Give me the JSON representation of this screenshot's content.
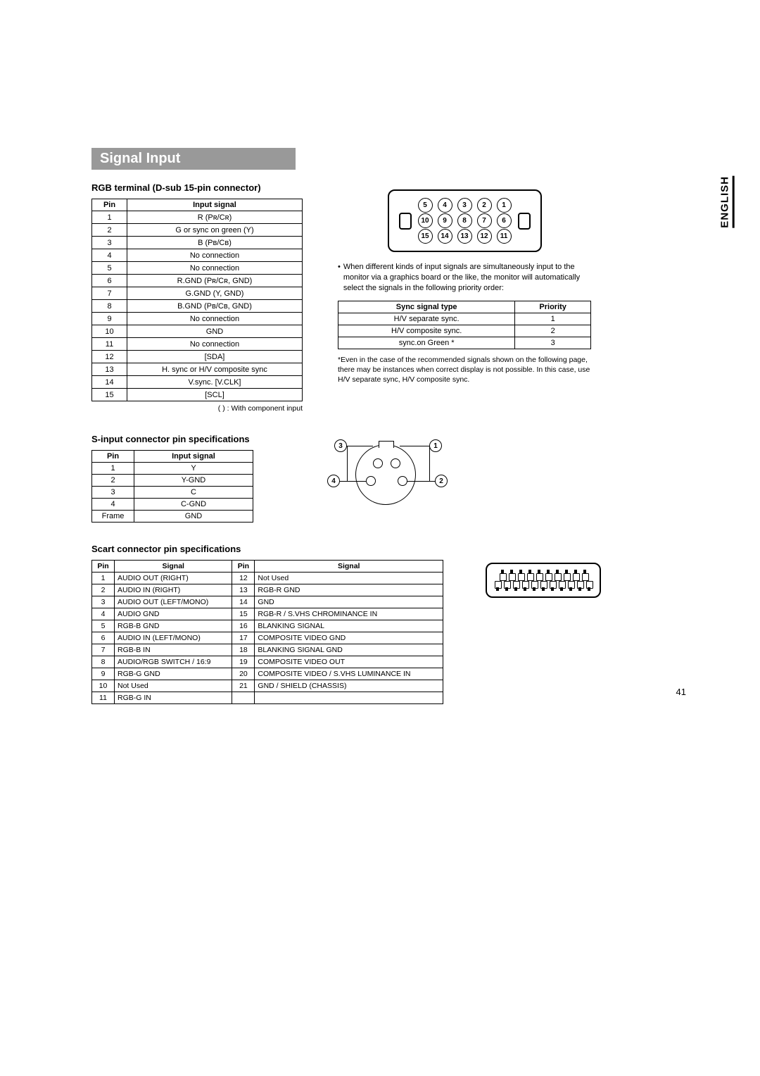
{
  "section_title": "Signal Input",
  "lang_label": "ENGLISH",
  "page_number": "41",
  "rgb": {
    "title": "RGB terminal (D-sub 15-pin connector)",
    "headers": [
      "Pin",
      "Input signal"
    ],
    "rows": [
      [
        "1",
        "R (Pʀ/Cʀ)"
      ],
      [
        "2",
        "G or sync on green (Y)"
      ],
      [
        "3",
        "B (Pв/Cв)"
      ],
      [
        "4",
        "No connection"
      ],
      [
        "5",
        "No connection"
      ],
      [
        "6",
        "R.GND (Pʀ/Cʀ, GND)"
      ],
      [
        "7",
        "G.GND (Y, GND)"
      ],
      [
        "8",
        "B.GND (Pв/Cв, GND)"
      ],
      [
        "9",
        "No connection"
      ],
      [
        "10",
        "GND"
      ],
      [
        "11",
        "No connection"
      ],
      [
        "12",
        "[SDA]"
      ],
      [
        "13",
        "H. sync or H/V composite sync"
      ],
      [
        "14",
        "V.sync. [V.CLK]"
      ],
      [
        "15",
        "[SCL]"
      ]
    ],
    "note": "(   ) : With component input"
  },
  "dsub_pins": {
    "row1": [
      "5",
      "4",
      "3",
      "2",
      "1"
    ],
    "row2": [
      "10",
      "9",
      "8",
      "7",
      "6"
    ],
    "row3": [
      "15",
      "14",
      "13",
      "12",
      "11"
    ]
  },
  "bullet1": "When different kinds of input signals are simultaneously input to the monitor via a graphics board or the like, the monitor will automatically select the signals in the following priority order:",
  "sync_table": {
    "headers": [
      "Sync signal type",
      "Priority"
    ],
    "rows": [
      [
        "H/V separate sync.",
        "1"
      ],
      [
        "H/V composite sync.",
        "2"
      ],
      [
        "sync.on Green *",
        "3"
      ]
    ]
  },
  "footnote": "*Even in the case of the recommended signals shown on the following page, there may be instances when correct display is not possible. In this case, use H/V separate sync, H/V composite sync.",
  "s_input": {
    "title": "S-input connector pin specifications",
    "headers": [
      "Pin",
      "Input signal"
    ],
    "rows": [
      [
        "1",
        "Y"
      ],
      [
        "2",
        "Y-GND"
      ],
      [
        "3",
        "C"
      ],
      [
        "4",
        "C-GND"
      ],
      [
        "Frame",
        "GND"
      ]
    ],
    "labels": {
      "l1": "1",
      "l2": "2",
      "l3": "3",
      "l4": "4"
    }
  },
  "scart": {
    "title": "Scart connector pin specifications",
    "headers": [
      "Pin",
      "Signal",
      "Pin",
      "Signal"
    ],
    "rows": [
      [
        "1",
        "AUDIO OUT (RIGHT)",
        "12",
        "Not Used"
      ],
      [
        "2",
        "AUDIO IN (RIGHT)",
        "13",
        "RGB-R GND"
      ],
      [
        "3",
        "AUDIO OUT (LEFT/MONO)",
        "14",
        "GND"
      ],
      [
        "4",
        "AUDIO GND",
        "15",
        "RGB-R / S.VHS CHROMINANCE IN"
      ],
      [
        "5",
        "RGB-B GND",
        "16",
        "BLANKING SIGNAL"
      ],
      [
        "6",
        "AUDIO IN (LEFT/MONO)",
        "17",
        "COMPOSITE VIDEO GND"
      ],
      [
        "7",
        "RGB-B IN",
        "18",
        "BLANKING SIGNAL GND"
      ],
      [
        "8",
        "AUDIO/RGB SWITCH / 16:9",
        "19",
        "COMPOSITE VIDEO OUT"
      ],
      [
        "9",
        "RGB-G GND",
        "20",
        "COMPOSITE VIDEO / S.VHS LUMINANCE IN"
      ],
      [
        "10",
        "Not Used",
        "21",
        "GND / SHIELD (CHASSIS)"
      ],
      [
        "11",
        "RGB-G IN",
        "",
        ""
      ]
    ],
    "top_count": 10,
    "bottom_count": 11
  }
}
